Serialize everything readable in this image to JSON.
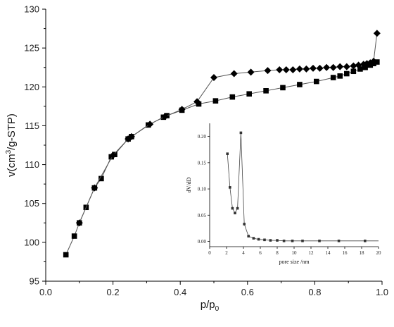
{
  "chart_data": [
    {
      "type": "line",
      "title": "",
      "xlabel": "p/p",
      "xlabel_sub": "0",
      "ylabel": "v(cm",
      "ylabel_sup": "3",
      "ylabel_rest": "/g-STP)",
      "xlim": [
        0.0,
        1.0
      ],
      "ylim": [
        95,
        130
      ],
      "xticks": [
        "0.0",
        "0.2",
        "0.4",
        "0.6",
        "0.8",
        "1.0"
      ],
      "yticks": [
        "95",
        "100",
        "105",
        "110",
        "115",
        "120",
        "125",
        "130"
      ],
      "grid": false,
      "legend": "none",
      "series": [
        {
          "marker": "square",
          "color": "#000000",
          "x": [
            0.06,
            0.085,
            0.1,
            0.12,
            0.145,
            0.165,
            0.195,
            0.205,
            0.245,
            0.255,
            0.305,
            0.35,
            0.36,
            0.405,
            0.455,
            0.505,
            0.555,
            0.605,
            0.655,
            0.705,
            0.755,
            0.805,
            0.855,
            0.875,
            0.895,
            0.915,
            0.935,
            0.95,
            0.965,
            0.975,
            0.985
          ],
          "values": [
            98.4,
            100.8,
            102.5,
            104.5,
            107.0,
            108.2,
            111.0,
            111.3,
            113.3,
            113.6,
            115.1,
            116.1,
            116.3,
            117.0,
            117.8,
            118.2,
            118.7,
            119.1,
            119.5,
            119.9,
            120.3,
            120.7,
            121.2,
            121.4,
            121.7,
            122.0,
            122.3,
            122.5,
            122.8,
            123.0,
            123.2
          ]
        },
        {
          "marker": "diamond",
          "color": "#000000",
          "x": [
            0.985,
            0.975,
            0.965,
            0.955,
            0.945,
            0.93,
            0.915,
            0.895,
            0.875,
            0.855,
            0.835,
            0.815,
            0.795,
            0.775,
            0.755,
            0.735,
            0.715,
            0.695,
            0.66,
            0.61,
            0.56,
            0.5,
            0.45,
            0.405,
            0.355,
            0.31,
            0.255,
            0.245,
            0.2,
            0.145,
            0.1
          ],
          "values": [
            126.9,
            123.3,
            123.1,
            123.0,
            122.9,
            122.8,
            122.7,
            122.6,
            122.6,
            122.5,
            122.5,
            122.4,
            122.4,
            122.3,
            122.3,
            122.2,
            122.2,
            122.2,
            122.1,
            121.9,
            121.7,
            121.2,
            118.1,
            117.1,
            116.2,
            115.2,
            113.6,
            113.3,
            111.2,
            107.0,
            102.5
          ]
        }
      ]
    },
    {
      "type": "line",
      "title": "",
      "xlabel": "pore size /nm",
      "ylabel": "dV/dD",
      "xlim": [
        0,
        20
      ],
      "ylim": [
        -0.01,
        0.225
      ],
      "xticks": [
        "0",
        "2",
        "4",
        "6",
        "8",
        "10",
        "12",
        "14",
        "16",
        "18",
        "20"
      ],
      "yticks": [
        "0.00",
        "0.05",
        "0.10",
        "0.15",
        "0.20"
      ],
      "grid": false,
      "legend": "none",
      "series": [
        {
          "marker": "square",
          "color": "#333333",
          "x": [
            2.1,
            2.4,
            2.7,
            3.0,
            3.3,
            3.7,
            4.1,
            4.6,
            5.2,
            5.8,
            6.5,
            7.2,
            8.0,
            8.8,
            9.8,
            11.0,
            13.0,
            15.3,
            18.4
          ],
          "values": [
            0.167,
            0.103,
            0.063,
            0.054,
            0.063,
            0.207,
            0.033,
            0.01,
            0.006,
            0.004,
            0.003,
            0.002,
            0.002,
            0.001,
            0.001,
            0.001,
            0.001,
            0.001,
            0.001
          ]
        }
      ]
    }
  ]
}
